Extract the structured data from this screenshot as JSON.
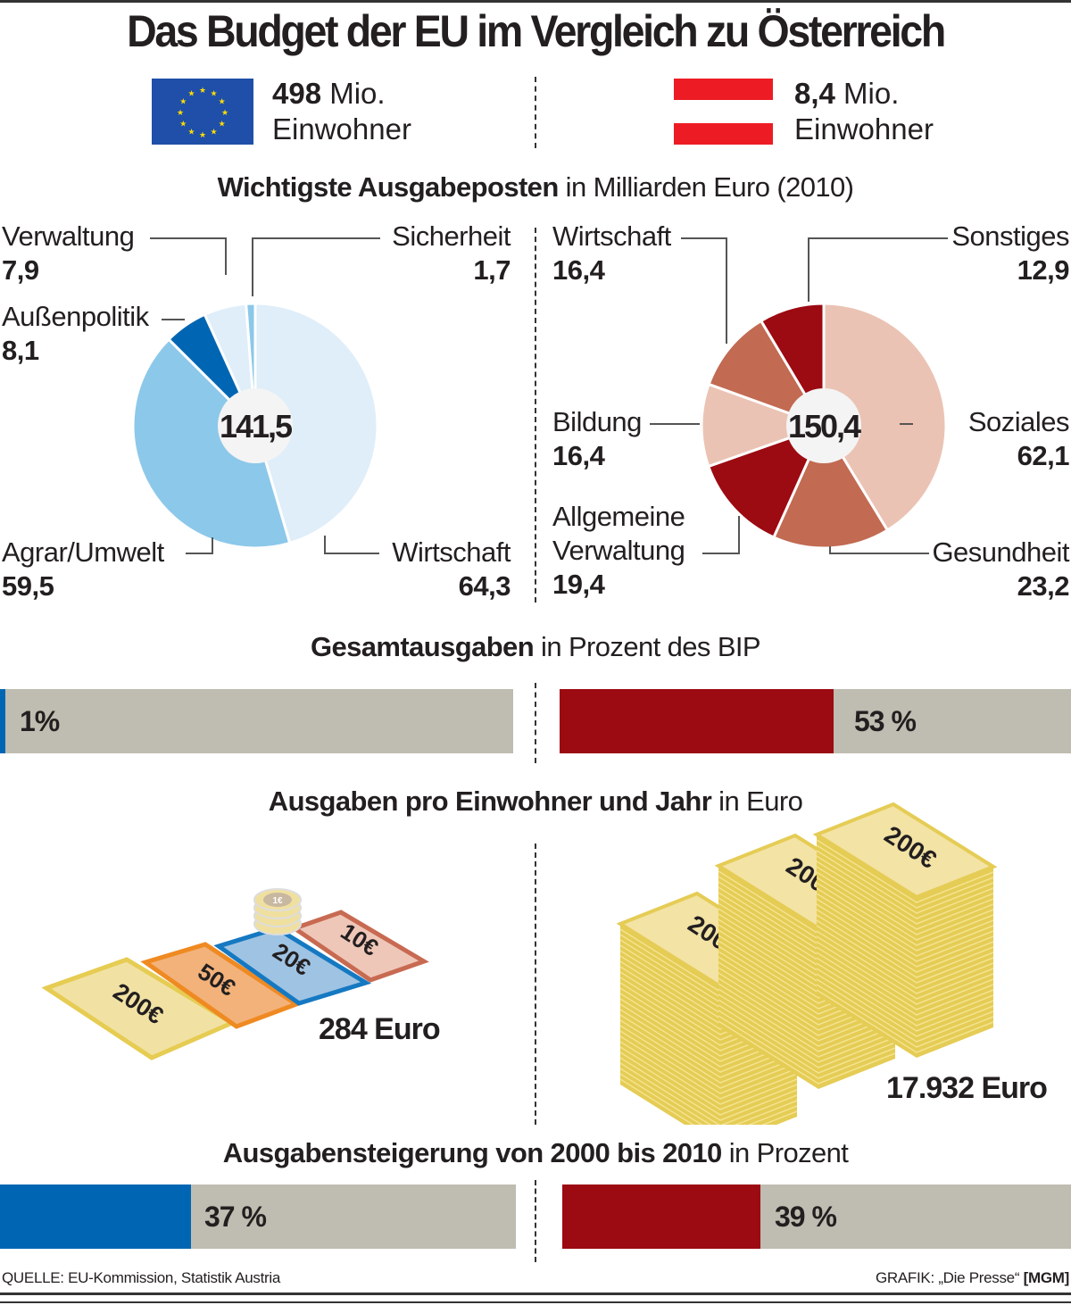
{
  "title": "Das Budget der EU im Vergleich zu Österreich",
  "eu": {
    "population_value": "498",
    "population_unit": "Mio.",
    "population_label": "Einwohner",
    "flag_icon": "eu-flag-icon",
    "color": "#0066b3"
  },
  "at": {
    "population_value": "8,4",
    "population_unit": "Mio.",
    "population_label": "Einwohner",
    "flag_icon": "austria-flag-icon",
    "color": "#9c0a12"
  },
  "sections": {
    "spending": {
      "bold": "Wichtigste Ausgabeposten",
      "rest": " in Milliarden Euro (2010)"
    },
    "gdp": {
      "bold": "Gesamtausgaben",
      "rest": " in Prozent des BIP"
    },
    "per_capita": {
      "bold": "Ausgaben pro Einwohner und Jahr",
      "rest": " in Euro"
    },
    "growth": {
      "bold": "Ausgabensteigerung von 2000 bis 2010",
      "rest": " in Prozent"
    }
  },
  "chart_data": [
    {
      "type": "pie",
      "title": "EU – Wichtigste Ausgabeposten in Milliarden Euro (2010)",
      "total_label": "141,5",
      "total": 141.5,
      "slices": [
        {
          "label": "Wirtschaft",
          "value": 64.3,
          "display": "64,3",
          "color": "#dfeef9"
        },
        {
          "label": "Agrar/Umwelt",
          "value": 59.5,
          "display": "59,5",
          "color": "#8cc8ea"
        },
        {
          "label": "Außenpolitik",
          "value": 8.1,
          "display": "8,1",
          "color": "#0066b3"
        },
        {
          "label": "Verwaltung",
          "value": 7.9,
          "display": "7,9",
          "color": "#dfeef9"
        },
        {
          "label": "Sicherheit",
          "value": 1.7,
          "display": "1,7",
          "color": "#8cc8ea"
        }
      ]
    },
    {
      "type": "pie",
      "title": "Österreich – Wichtigste Ausgabeposten in Milliarden Euro (2010)",
      "total_label": "150,4",
      "total": 150.4,
      "slices": [
        {
          "label": "Soziales",
          "value": 62.1,
          "display": "62,1",
          "color": "#ebc3b4"
        },
        {
          "label": "Gesundheit",
          "value": 23.2,
          "display": "23,2",
          "color": "#c26a52"
        },
        {
          "label": "Allgemeine Verwaltung",
          "value": 19.4,
          "display": "19,4",
          "color": "#9c0a12"
        },
        {
          "label": "Bildung",
          "value": 16.4,
          "display": "16,4",
          "color": "#ebc3b4"
        },
        {
          "label": "Wirtschaft",
          "value": 16.4,
          "display": "16,4",
          "color": "#c26a52"
        },
        {
          "label": "Sonstiges",
          "value": 12.9,
          "display": "12,9",
          "color": "#9c0a12"
        }
      ]
    },
    {
      "type": "bar",
      "title": "Gesamtausgaben in Prozent des BIP",
      "categories": [
        "EU",
        "Österreich"
      ],
      "values": [
        1,
        53
      ],
      "labels": [
        "1%",
        "53 %"
      ],
      "ylim": [
        0,
        100
      ]
    },
    {
      "type": "table",
      "title": "Ausgaben pro Einwohner und Jahr in Euro",
      "categories": [
        "EU",
        "Österreich"
      ],
      "values": [
        284,
        17932
      ],
      "labels": [
        "284 Euro",
        "17.932 Euro"
      ]
    },
    {
      "type": "bar",
      "title": "Ausgabensteigerung von 2000 bis 2010 in Prozent",
      "categories": [
        "EU",
        "Österreich"
      ],
      "values": [
        37,
        39
      ],
      "labels": [
        "37 %",
        "39 %"
      ],
      "ylim": [
        0,
        100
      ]
    }
  ],
  "illustrations": {
    "eu_notes": [
      "200€",
      "50€",
      "20€",
      "10€"
    ],
    "eu_coin": "1€",
    "at_stacks": [
      "200€",
      "200€",
      "200€"
    ]
  },
  "footer": {
    "source": "QUELLE: EU-Kommission, Statistik Austria",
    "credit": "GRAFIK: „Die Presse“",
    "credit_bold": "[MGM]"
  }
}
